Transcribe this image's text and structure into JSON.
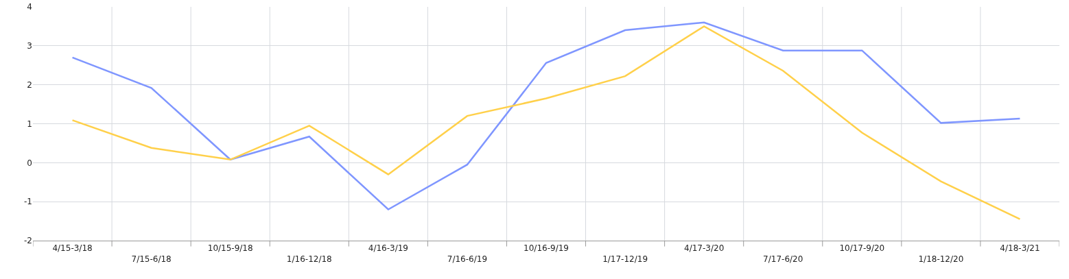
{
  "chart_data": {
    "type": "line",
    "categories": [
      "4/15-3/18",
      "7/15-6/18",
      "10/15-9/18",
      "1/16-12/18",
      "4/16-3/19",
      "7/16-6/19",
      "10/16-9/19",
      "1/17-12/19",
      "4/17-3/20",
      "7/17-6/20",
      "10/17-9/20",
      "1/18-12/20",
      "4/18-3/21"
    ],
    "series": [
      {
        "color": "#7f96ff",
        "values": [
          2.7,
          1.92,
          0.08,
          0.67,
          -1.2,
          -0.05,
          2.56,
          3.4,
          3.6,
          2.88,
          2.88,
          1.02,
          1.13
        ]
      },
      {
        "color": "#ffd04a",
        "values": [
          1.09,
          0.38,
          0.08,
          0.95,
          -0.3,
          1.2,
          1.65,
          2.22,
          3.5,
          2.36,
          0.77,
          -0.48,
          -1.45
        ]
      }
    ],
    "ylim": [
      -2,
      4
    ],
    "yticks": [
      -2,
      -1,
      0,
      1,
      2,
      3,
      4
    ],
    "grid": true,
    "marker": "none",
    "line_style": "solid"
  }
}
